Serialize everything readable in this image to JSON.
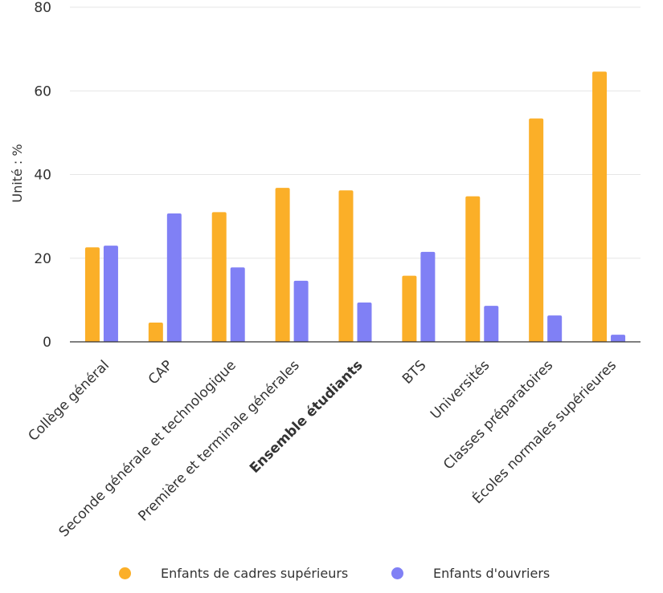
{
  "chart_data": {
    "type": "bar",
    "ylabel": "Unité : %",
    "xlabel": "",
    "ylim": [
      0,
      80
    ],
    "yticks": [
      0,
      20,
      40,
      60,
      80
    ],
    "grid": true,
    "legend_position": "bottom",
    "categories": [
      "Collège général",
      "CAP",
      "Seconde générale et technologique",
      "Première et terminale générales",
      "Ensemble étudiants",
      "BTS",
      "Universités",
      "Classes préparatoires",
      "Écoles normales supérieures"
    ],
    "highlighted_category": "Ensemble étudiants",
    "series": [
      {
        "name": "Enfants de cadres supérieurs",
        "color": "#FBAF28",
        "values": [
          22.6,
          4.6,
          31.0,
          36.8,
          36.2,
          15.8,
          34.8,
          53.4,
          64.6
        ]
      },
      {
        "name": "Enfants d'ouvriers",
        "color": "#8080F5",
        "values": [
          23.0,
          30.7,
          17.8,
          14.6,
          9.4,
          21.5,
          8.6,
          6.3,
          1.7
        ]
      }
    ]
  }
}
